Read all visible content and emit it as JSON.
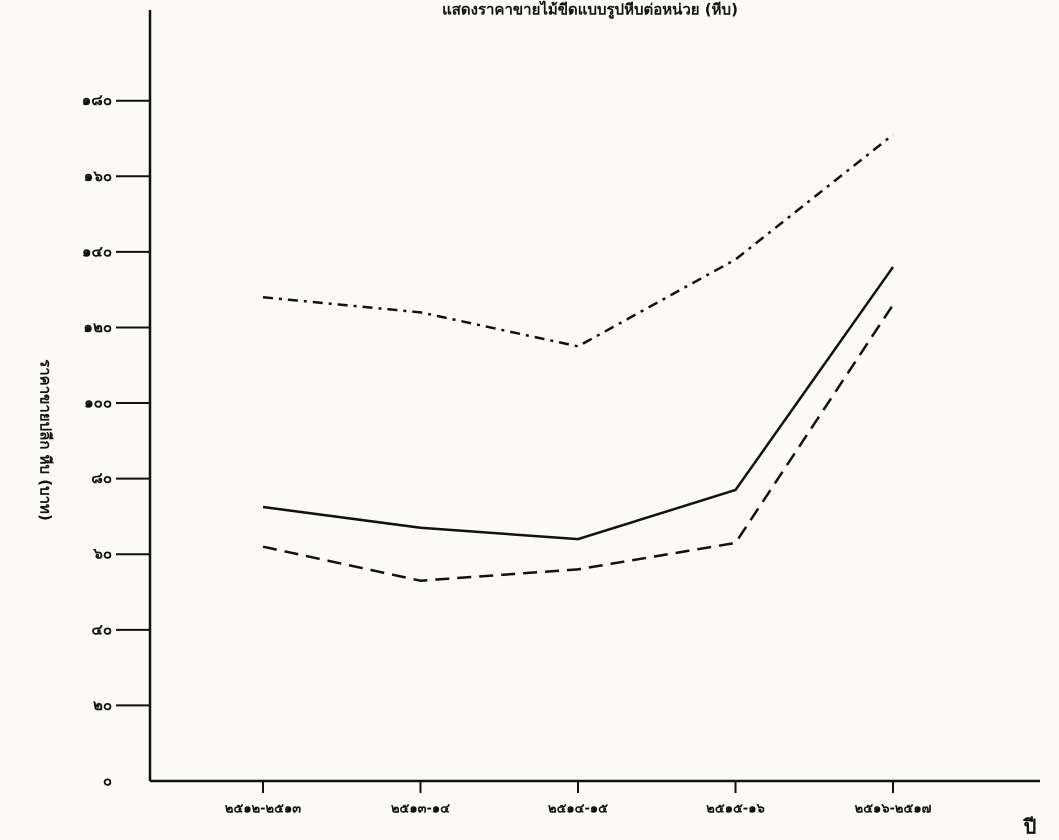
{
  "chart_data": {
    "type": "line",
    "title": "แสดงราคาขายไม้ขีดแบบรูปหีบต่อหน่วย (หีบ)",
    "y_label": "ราคาขายปลีก หีบ (บาท)",
    "x_label": "ปี",
    "categories": [
      "๒๕๑๒-๒๕๑๓",
      "๒๕๑๓-๑๔",
      "๒๕๑๔-๑๕",
      "๒๕๑๕-๑๖",
      "๒๕๑๖-๒๕๑๗"
    ],
    "series": [
      {
        "color": "#111111",
        "dash": "dashdot",
        "values": [
          128,
          124,
          115,
          138,
          171
        ]
      },
      {
        "color": "#111111",
        "dash": "solid",
        "values": [
          72.5,
          67,
          64,
          77,
          136
        ]
      },
      {
        "color": "#111111",
        "dash": "dashed",
        "values": [
          62,
          53,
          56,
          63,
          126
        ]
      }
    ],
    "ylim": [
      0,
      204
    ],
    "yticks": [
      {
        "value": 0,
        "label": "๐"
      },
      {
        "value": 20,
        "label": "๒๐"
      },
      {
        "value": 40,
        "label": "๔๐"
      },
      {
        "value": 60,
        "label": "๖๐"
      },
      {
        "value": 80,
        "label": "๘๐"
      },
      {
        "value": 100,
        "label": "๑๐๐"
      },
      {
        "value": 120,
        "label": "๑๒๐"
      },
      {
        "value": 140,
        "label": "๑๔๐"
      },
      {
        "value": 160,
        "label": "๑๖๐"
      },
      {
        "value": 180,
        "label": "๑๘๐"
      }
    ],
    "grid": false
  }
}
